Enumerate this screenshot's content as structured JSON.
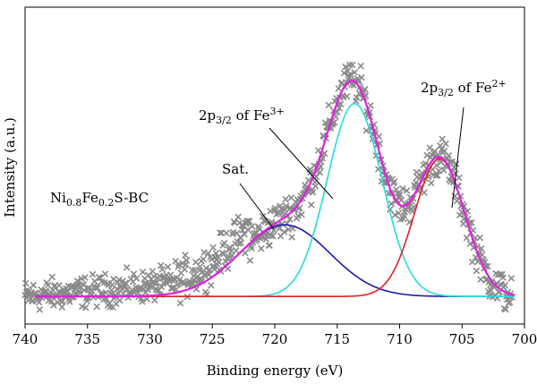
{
  "chart_data": {
    "type": "scatter",
    "title": "",
    "xlabel": "Binding energy (eV)",
    "ylabel": "Intensity (a.u.)",
    "xlim": [
      740,
      700
    ],
    "ylim": [
      -0.1,
      1.05
    ],
    "x_reversed": true,
    "y_tick_labels": false,
    "xticks": [
      740,
      735,
      730,
      725,
      720,
      715,
      710,
      705,
      700
    ],
    "grid": false,
    "legend": "none",
    "baseline": 0.0,
    "sample_label": {
      "base": "Ni",
      "sub1": "0.8",
      "mid": "Fe",
      "sub2": "0.2",
      "tail": "S-BC"
    },
    "annotations": [
      {
        "id": "fe2",
        "pre": "2p",
        "sub": "3/2",
        "mid": " of Fe",
        "sup": "2+",
        "points_to_x": 706.5,
        "points_to_y": 0.27
      },
      {
        "id": "fe3",
        "pre": "2p",
        "sub": "3/2",
        "mid": " of Fe",
        "sup": "3+",
        "points_to_x": 715.5,
        "points_to_y": 0.31
      },
      {
        "id": "sat",
        "pre": "Sat.",
        "sub": "",
        "mid": "",
        "sup": "",
        "points_to_x": 719.5,
        "points_to_y": 0.18
      }
    ],
    "series": [
      {
        "kind": "peak",
        "center": 719.2,
        "height": 0.26,
        "width": 3.6,
        "color": "#1a1aaa"
      },
      {
        "kind": "peak",
        "center": 713.6,
        "height": 0.7,
        "width": 2.2,
        "color": "#22dddd"
      },
      {
        "kind": "peak",
        "center": 706.8,
        "height": 0.5,
        "width": 2.0,
        "color": "#dd2222"
      },
      {
        "kind": "envelope",
        "color": "#dd22dd"
      }
    ],
    "raw_marker_color": "#8a8a8a",
    "raw_marker": "x"
  }
}
